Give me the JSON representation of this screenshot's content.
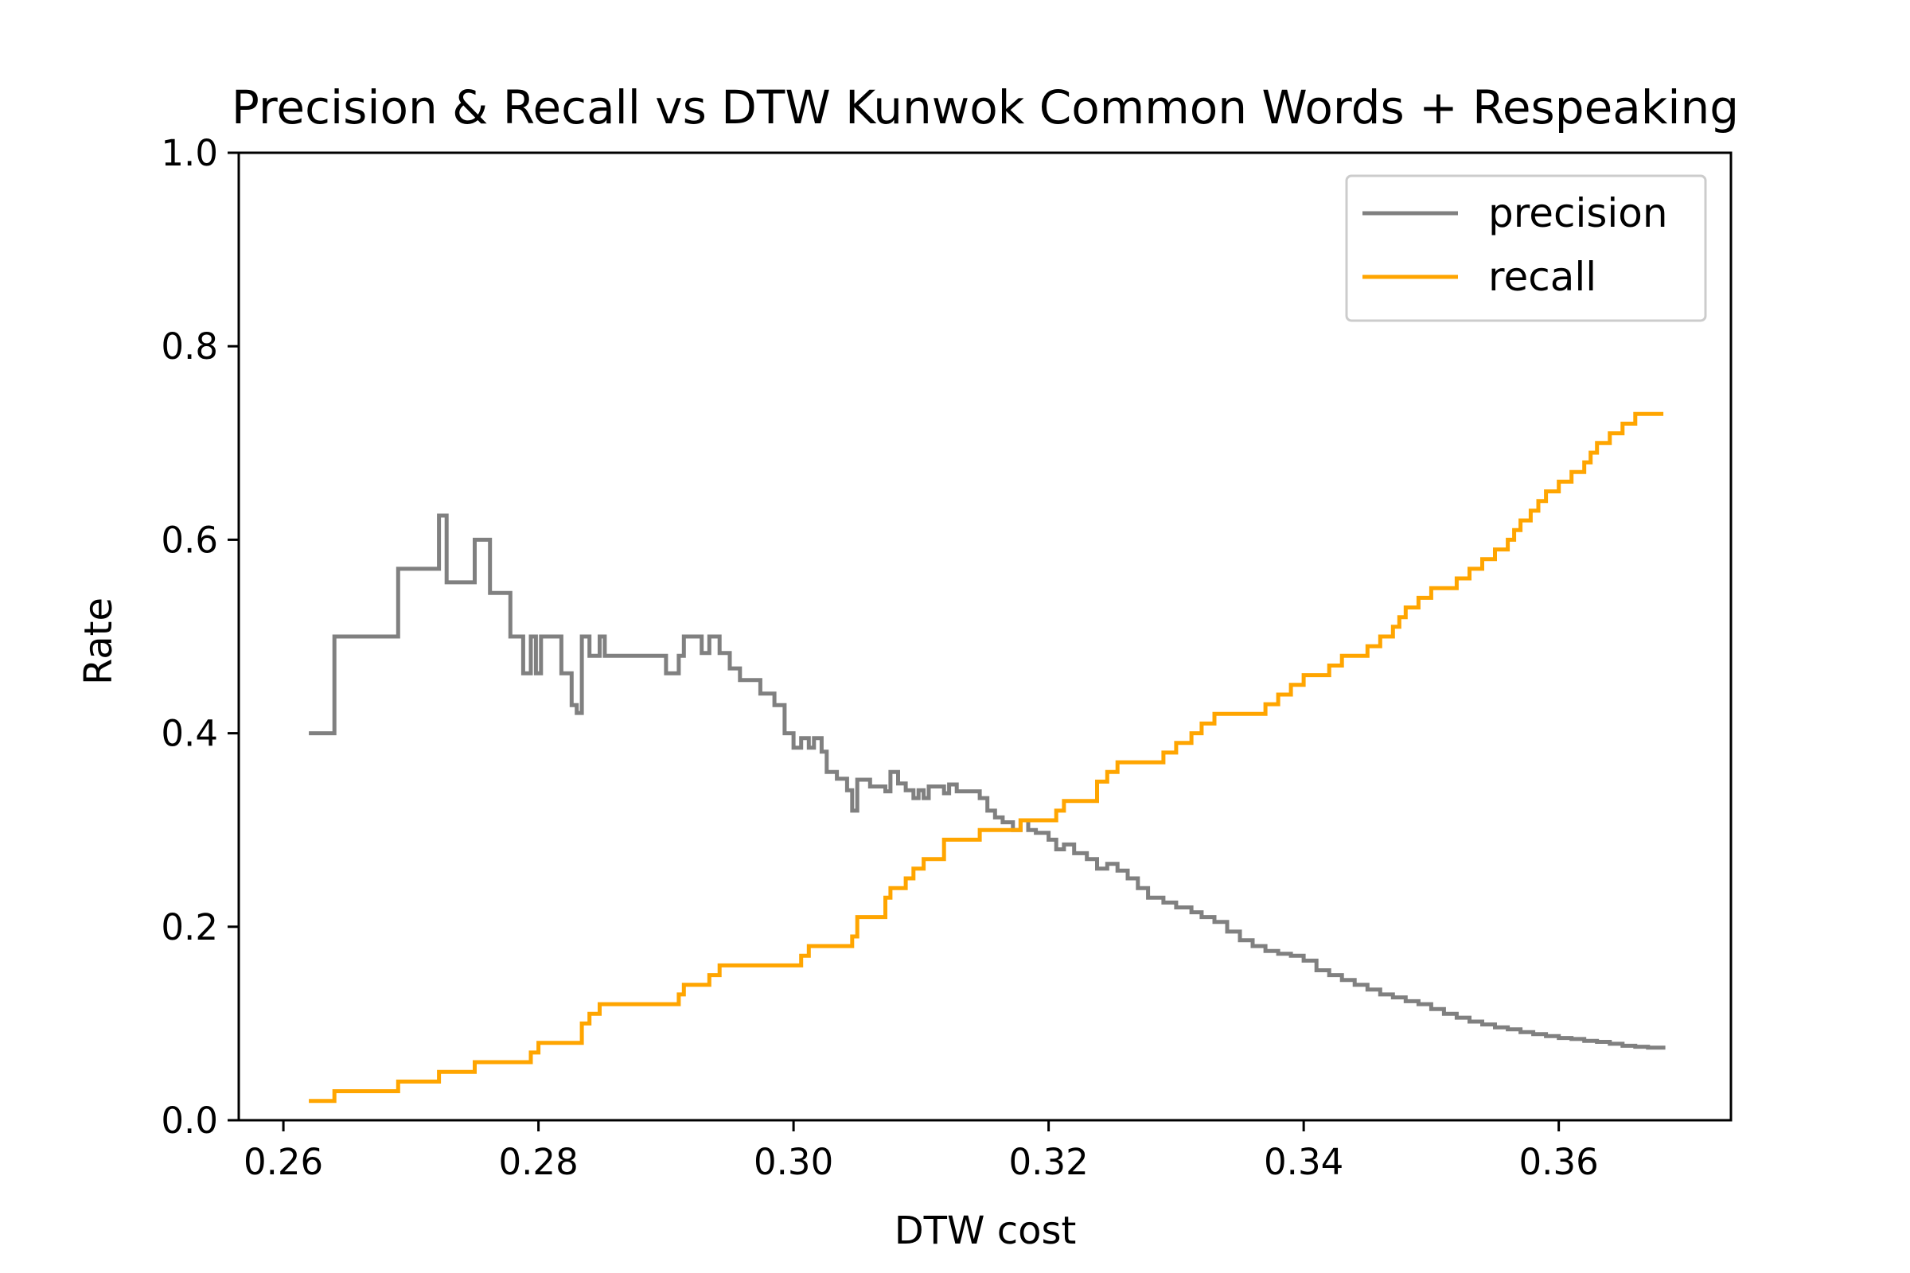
{
  "chart_data": {
    "type": "line",
    "title": "Precision & Recall vs DTW Kunwok Common Words + Respeaking",
    "xlabel": "DTW cost",
    "ylabel": "Rate",
    "xlim": [
      0.2565,
      0.3735
    ],
    "ylim": [
      0.0,
      1.0
    ],
    "xticks": [
      0.26,
      0.28,
      0.3,
      0.32,
      0.34,
      0.36
    ],
    "xtick_labels": [
      "0.26",
      "0.28",
      "0.30",
      "0.32",
      "0.34",
      "0.36"
    ],
    "yticks": [
      0.0,
      0.2,
      0.4,
      0.6,
      0.8,
      1.0
    ],
    "ytick_labels": [
      "0.0",
      "0.2",
      "0.4",
      "0.6",
      "0.8",
      "1.0"
    ],
    "grid": false,
    "legend_position": "top-right",
    "series": [
      {
        "name": "precision",
        "color": "#808080",
        "step": true,
        "points": [
          [
            0.262,
            0.4
          ],
          [
            0.264,
            0.5
          ],
          [
            0.269,
            0.57
          ],
          [
            0.2722,
            0.625
          ],
          [
            0.2728,
            0.556
          ],
          [
            0.275,
            0.6
          ],
          [
            0.2762,
            0.545
          ],
          [
            0.2778,
            0.5
          ],
          [
            0.2788,
            0.462
          ],
          [
            0.2794,
            0.5
          ],
          [
            0.2798,
            0.462
          ],
          [
            0.2802,
            0.5
          ],
          [
            0.2818,
            0.462
          ],
          [
            0.2826,
            0.429
          ],
          [
            0.283,
            0.421
          ],
          [
            0.2834,
            0.5
          ],
          [
            0.284,
            0.48
          ],
          [
            0.2848,
            0.5
          ],
          [
            0.2852,
            0.48
          ],
          [
            0.29,
            0.462
          ],
          [
            0.291,
            0.48
          ],
          [
            0.2914,
            0.5
          ],
          [
            0.2928,
            0.483
          ],
          [
            0.2934,
            0.5
          ],
          [
            0.2942,
            0.483
          ],
          [
            0.295,
            0.467
          ],
          [
            0.2958,
            0.455
          ],
          [
            0.2974,
            0.441
          ],
          [
            0.2985,
            0.429
          ],
          [
            0.2993,
            0.4
          ],
          [
            0.3,
            0.385
          ],
          [
            0.3006,
            0.395
          ],
          [
            0.3012,
            0.385
          ],
          [
            0.3016,
            0.395
          ],
          [
            0.3022,
            0.381
          ],
          [
            0.3026,
            0.36
          ],
          [
            0.3034,
            0.353
          ],
          [
            0.3042,
            0.341
          ],
          [
            0.3046,
            0.32
          ],
          [
            0.305,
            0.352
          ],
          [
            0.306,
            0.345
          ],
          [
            0.3066,
            0.345
          ],
          [
            0.3072,
            0.34
          ],
          [
            0.3076,
            0.36
          ],
          [
            0.3082,
            0.348
          ],
          [
            0.3088,
            0.341
          ],
          [
            0.3094,
            0.333
          ],
          [
            0.3098,
            0.341
          ],
          [
            0.3102,
            0.333
          ],
          [
            0.3106,
            0.345
          ],
          [
            0.3118,
            0.338
          ],
          [
            0.3122,
            0.347
          ],
          [
            0.3128,
            0.34
          ],
          [
            0.314,
            0.34
          ],
          [
            0.3146,
            0.333
          ],
          [
            0.3152,
            0.32
          ],
          [
            0.3158,
            0.313
          ],
          [
            0.3164,
            0.308
          ],
          [
            0.3172,
            0.3
          ],
          [
            0.3178,
            0.31
          ],
          [
            0.3184,
            0.3
          ],
          [
            0.319,
            0.297
          ],
          [
            0.32,
            0.29
          ],
          [
            0.3206,
            0.28
          ],
          [
            0.3212,
            0.285
          ],
          [
            0.322,
            0.276
          ],
          [
            0.323,
            0.27
          ],
          [
            0.3238,
            0.26
          ],
          [
            0.3246,
            0.265
          ],
          [
            0.3254,
            0.258
          ],
          [
            0.3262,
            0.25
          ],
          [
            0.327,
            0.24
          ],
          [
            0.3278,
            0.23
          ],
          [
            0.329,
            0.225
          ],
          [
            0.33,
            0.22
          ],
          [
            0.3312,
            0.215
          ],
          [
            0.332,
            0.21
          ],
          [
            0.333,
            0.205
          ],
          [
            0.334,
            0.195
          ],
          [
            0.335,
            0.186
          ],
          [
            0.336,
            0.18
          ],
          [
            0.337,
            0.175
          ],
          [
            0.338,
            0.172
          ],
          [
            0.339,
            0.17
          ],
          [
            0.34,
            0.165
          ],
          [
            0.341,
            0.155
          ],
          [
            0.342,
            0.15
          ],
          [
            0.343,
            0.145
          ],
          [
            0.344,
            0.14
          ],
          [
            0.345,
            0.135
          ],
          [
            0.346,
            0.13
          ],
          [
            0.347,
            0.127
          ],
          [
            0.348,
            0.123
          ],
          [
            0.349,
            0.12
          ],
          [
            0.35,
            0.115
          ],
          [
            0.351,
            0.11
          ],
          [
            0.352,
            0.106
          ],
          [
            0.353,
            0.102
          ],
          [
            0.354,
            0.099
          ],
          [
            0.355,
            0.096
          ],
          [
            0.356,
            0.094
          ],
          [
            0.357,
            0.091
          ],
          [
            0.358,
            0.089
          ],
          [
            0.359,
            0.087
          ],
          [
            0.36,
            0.085
          ],
          [
            0.361,
            0.084
          ],
          [
            0.362,
            0.082
          ],
          [
            0.363,
            0.081
          ],
          [
            0.364,
            0.079
          ],
          [
            0.365,
            0.077
          ],
          [
            0.366,
            0.076
          ],
          [
            0.367,
            0.075
          ],
          [
            0.3682,
            0.073
          ]
        ]
      },
      {
        "name": "recall",
        "color": "#FFA500",
        "step": true,
        "points": [
          [
            0.262,
            0.02
          ],
          [
            0.264,
            0.03
          ],
          [
            0.269,
            0.04
          ],
          [
            0.2722,
            0.05
          ],
          [
            0.275,
            0.06
          ],
          [
            0.2794,
            0.07
          ],
          [
            0.28,
            0.08
          ],
          [
            0.2834,
            0.1
          ],
          [
            0.284,
            0.11
          ],
          [
            0.2848,
            0.12
          ],
          [
            0.291,
            0.13
          ],
          [
            0.2914,
            0.14
          ],
          [
            0.2934,
            0.15
          ],
          [
            0.2942,
            0.16
          ],
          [
            0.3006,
            0.17
          ],
          [
            0.3012,
            0.18
          ],
          [
            0.3046,
            0.19
          ],
          [
            0.305,
            0.21
          ],
          [
            0.3072,
            0.23
          ],
          [
            0.3076,
            0.24
          ],
          [
            0.3088,
            0.25
          ],
          [
            0.3094,
            0.26
          ],
          [
            0.3102,
            0.27
          ],
          [
            0.3118,
            0.29
          ],
          [
            0.3146,
            0.3
          ],
          [
            0.3178,
            0.31
          ],
          [
            0.3206,
            0.32
          ],
          [
            0.3212,
            0.33
          ],
          [
            0.3238,
            0.35
          ],
          [
            0.3246,
            0.36
          ],
          [
            0.3254,
            0.37
          ],
          [
            0.329,
            0.38
          ],
          [
            0.33,
            0.39
          ],
          [
            0.3312,
            0.4
          ],
          [
            0.332,
            0.41
          ],
          [
            0.333,
            0.42
          ],
          [
            0.337,
            0.43
          ],
          [
            0.338,
            0.44
          ],
          [
            0.339,
            0.45
          ],
          [
            0.34,
            0.46
          ],
          [
            0.342,
            0.47
          ],
          [
            0.343,
            0.48
          ],
          [
            0.345,
            0.49
          ],
          [
            0.346,
            0.5
          ],
          [
            0.347,
            0.51
          ],
          [
            0.3475,
            0.52
          ],
          [
            0.348,
            0.53
          ],
          [
            0.349,
            0.54
          ],
          [
            0.35,
            0.55
          ],
          [
            0.352,
            0.56
          ],
          [
            0.353,
            0.57
          ],
          [
            0.354,
            0.58
          ],
          [
            0.355,
            0.59
          ],
          [
            0.356,
            0.6
          ],
          [
            0.3565,
            0.61
          ],
          [
            0.357,
            0.62
          ],
          [
            0.3578,
            0.63
          ],
          [
            0.3584,
            0.64
          ],
          [
            0.359,
            0.65
          ],
          [
            0.36,
            0.66
          ],
          [
            0.361,
            0.67
          ],
          [
            0.362,
            0.68
          ],
          [
            0.3625,
            0.69
          ],
          [
            0.363,
            0.7
          ],
          [
            0.364,
            0.71
          ],
          [
            0.365,
            0.72
          ],
          [
            0.366,
            0.73
          ],
          [
            0.3682,
            0.73
          ]
        ]
      }
    ]
  }
}
